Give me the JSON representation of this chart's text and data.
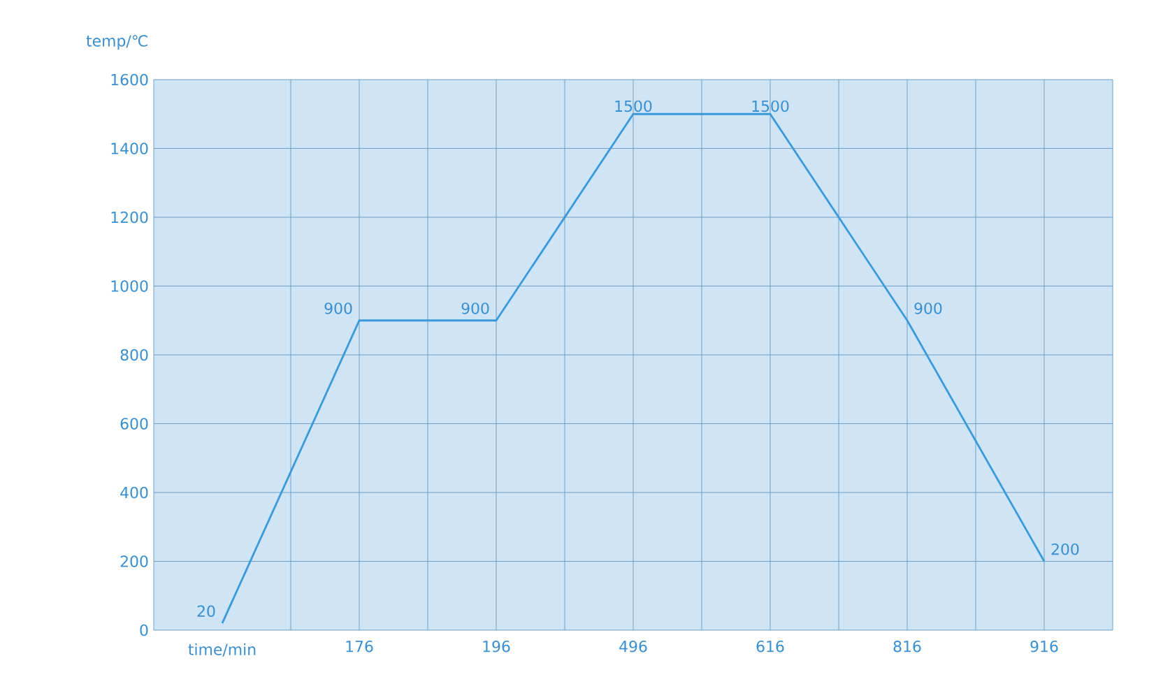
{
  "chart_data": {
    "type": "line",
    "xlabel": "time/min",
    "ylabel": "temp/℃",
    "categories": [
      null,
      "176",
      "196",
      "496",
      "616",
      "816",
      "916"
    ],
    "values": [
      20,
      900,
      900,
      1500,
      1500,
      900,
      200
    ],
    "color": "#3a9ad9",
    "ylim": [
      0,
      1600
    ],
    "yticks": [
      0,
      200,
      400,
      600,
      800,
      1000,
      1200,
      1400,
      1600
    ],
    "grid": true,
    "data_labels": true,
    "marker": "none",
    "line_style": "solid"
  }
}
